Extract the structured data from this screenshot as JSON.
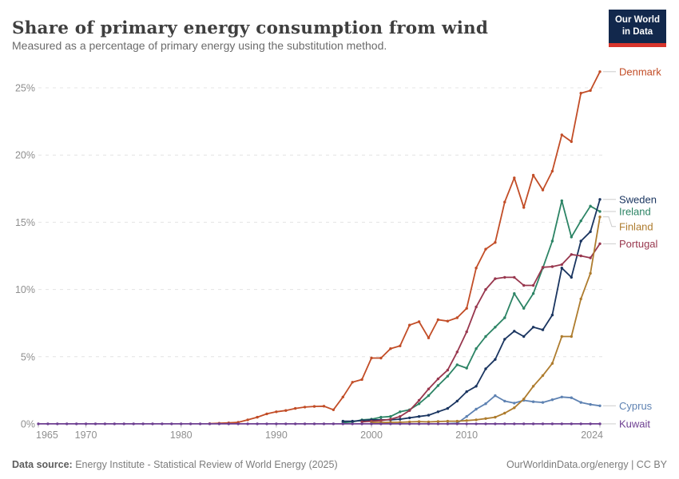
{
  "header": {
    "logo": {
      "line1": "Our World",
      "line2": "in Data",
      "bg_color": "#12284c",
      "accent_color": "#d8352c"
    }
  },
  "footer": {
    "source_label": "Data source:",
    "source": "Energy Institute - Statistical Review of World Energy (2025)",
    "credit": "OurWorldinData.org/energy | CC BY"
  },
  "chart_data": {
    "type": "line",
    "title": "Share of primary energy consumption from wind",
    "subtitle": "Measured as a percentage of primary energy using the substitution method.",
    "xlim": [
      1965,
      2024
    ],
    "ylim": [
      0,
      27
    ],
    "x_ticks": [
      1965,
      1970,
      1980,
      1990,
      2000,
      2010,
      2024
    ],
    "y_ticks": [
      0,
      5,
      10,
      15,
      20,
      25
    ],
    "y_unit": "%",
    "grid": true,
    "legend_position": "end-labels-right",
    "gridline_color": "#e4e4e4",
    "axis_label_color": "#8f8f8f",
    "series": [
      {
        "name": "Denmark",
        "color": "#c24d27",
        "start_year": 1983,
        "values": [
          0.02,
          0.05,
          0.08,
          0.12,
          0.3,
          0.5,
          0.75,
          0.9,
          1.0,
          1.15,
          1.25,
          1.3,
          1.32,
          1.05,
          2.0,
          3.1,
          3.3,
          4.9,
          4.9,
          5.6,
          5.8,
          7.35,
          7.6,
          6.4,
          7.75,
          7.65,
          7.9,
          8.6,
          11.6,
          13.0,
          13.5,
          16.5,
          18.3,
          16.1,
          18.5,
          17.4,
          18.8,
          21.5,
          21.0,
          24.6,
          24.8,
          26.2
        ]
      },
      {
        "name": "Sweden",
        "color": "#1a3560",
        "start_year": 1997,
        "values": [
          0.2,
          0.2,
          0.25,
          0.3,
          0.3,
          0.3,
          0.35,
          0.45,
          0.55,
          0.65,
          0.9,
          1.15,
          1.7,
          2.4,
          2.8,
          4.1,
          4.8,
          6.3,
          6.9,
          6.5,
          7.2,
          7.0,
          8.1,
          11.6,
          10.9,
          13.6,
          14.3,
          16.7
        ]
      },
      {
        "name": "Ireland",
        "color": "#2c8465",
        "start_year": 1997,
        "values": [
          0.1,
          0.15,
          0.3,
          0.35,
          0.5,
          0.55,
          0.9,
          1.05,
          1.5,
          2.1,
          2.85,
          3.55,
          4.4,
          4.15,
          5.6,
          6.5,
          7.2,
          7.9,
          9.7,
          8.6,
          9.7,
          11.6,
          13.6,
          16.6,
          13.9,
          15.1,
          16.2,
          15.8
        ]
      },
      {
        "name": "Finland",
        "color": "#ae7c2e",
        "start_year": 2000,
        "values": [
          0.1,
          0.1,
          0.12,
          0.12,
          0.15,
          0.17,
          0.15,
          0.18,
          0.2,
          0.2,
          0.25,
          0.3,
          0.4,
          0.5,
          0.8,
          1.2,
          1.85,
          2.8,
          3.6,
          4.5,
          6.5,
          6.5,
          9.3,
          11.2,
          15.4
        ]
      },
      {
        "name": "Portugal",
        "color": "#98374e",
        "start_year": 1999,
        "values": [
          0.15,
          0.2,
          0.25,
          0.35,
          0.55,
          1.0,
          1.75,
          2.6,
          3.35,
          4.0,
          5.35,
          6.85,
          8.7,
          10.0,
          10.8,
          10.9,
          10.9,
          10.3,
          10.3,
          11.65,
          11.7,
          11.85,
          12.6,
          12.5,
          12.35,
          13.4
        ]
      },
      {
        "name": "Cyprus",
        "color": "#5e82b2",
        "start_year": 2008,
        "values": [
          0.02,
          0.05,
          0.55,
          1.1,
          1.5,
          2.1,
          1.7,
          1.55,
          1.75,
          1.65,
          1.6,
          1.8,
          2.0,
          1.95,
          1.6,
          1.45,
          1.35
        ]
      },
      {
        "name": "Kuwait",
        "color": "#6d3e91",
        "start_year": 1965,
        "values": [
          0.005,
          0.005,
          0.005,
          0.005,
          0.005,
          0.005,
          0.005,
          0.005,
          0.005,
          0.005,
          0.005,
          0.005,
          0.005,
          0.005,
          0.005,
          0.005,
          0.005,
          0.005,
          0.005,
          0.005,
          0.005,
          0.005,
          0.005,
          0.005,
          0.005,
          0.005,
          0.005,
          0.005,
          0.005,
          0.005,
          0.005,
          0.005,
          0.005,
          0.005,
          0.005,
          0.005,
          0.005,
          0.005,
          0.005,
          0.005,
          0.005,
          0.005,
          0.005,
          0.005,
          0.005,
          0.005,
          0.005,
          0.005,
          0.005,
          0.005,
          0.005,
          0.005,
          0.005,
          0.005,
          0.005,
          0.005,
          0.005,
          0.005,
          0.005,
          0.005
        ]
      }
    ]
  }
}
